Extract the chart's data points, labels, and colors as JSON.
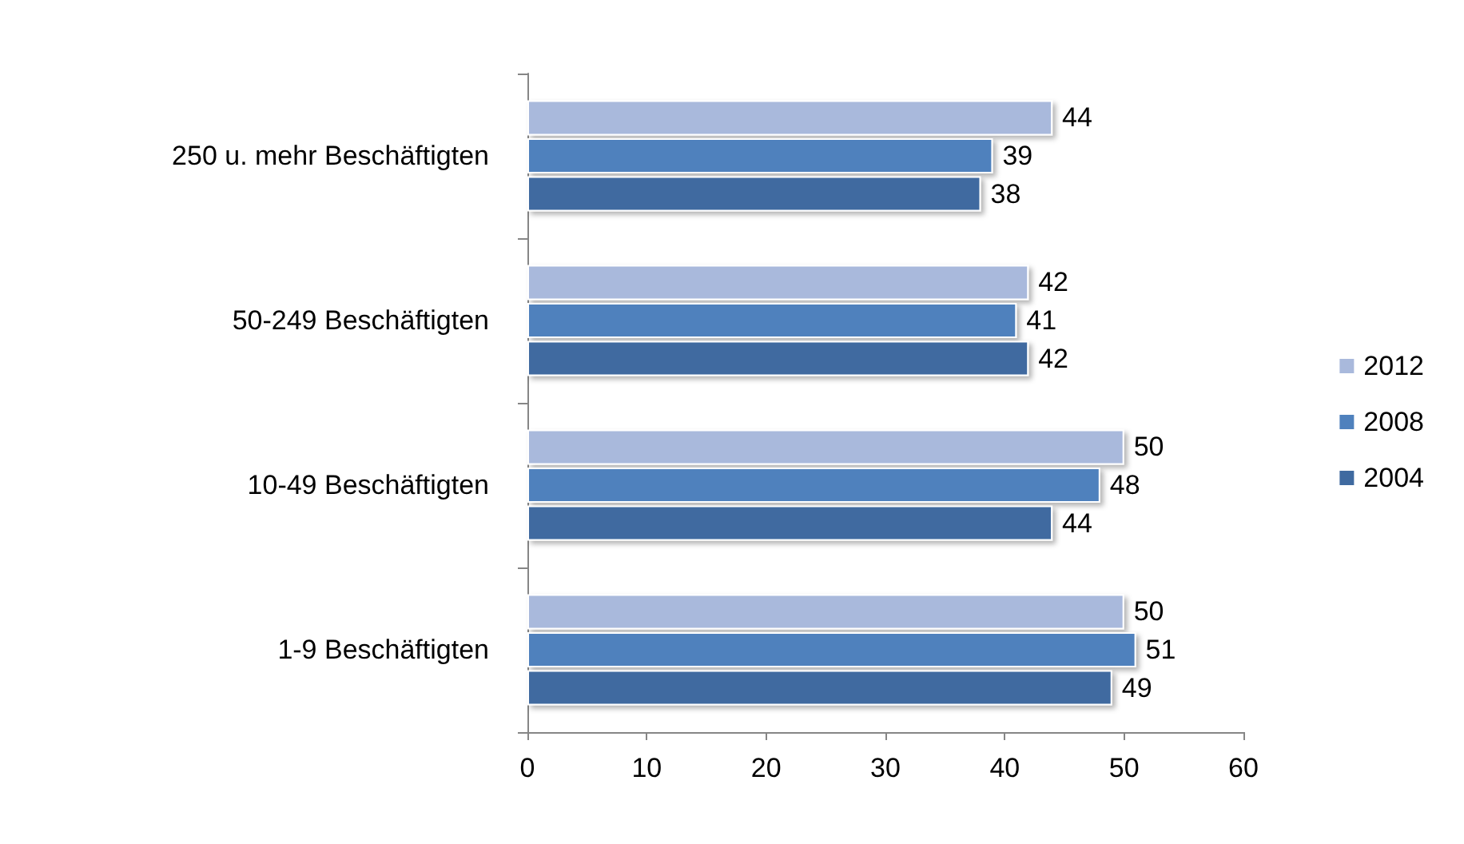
{
  "chart_data": {
    "type": "bar",
    "orientation": "horizontal",
    "categories": [
      "250 u. mehr Beschäftigten",
      "50-249 Beschäftigten",
      "10-49 Beschäftigten",
      "1-9 Beschäftigten"
    ],
    "series": [
      {
        "name": "2012",
        "color": "#a9b9dc",
        "values": [
          44,
          42,
          50,
          50
        ]
      },
      {
        "name": "2008",
        "color": "#4f81bd",
        "values": [
          39,
          41,
          48,
          51
        ]
      },
      {
        "name": "2004",
        "color": "#3f6aa0",
        "values": [
          38,
          42,
          44,
          49
        ]
      }
    ],
    "xlim": [
      0,
      60
    ],
    "xticks": [
      0,
      10,
      20,
      30,
      40,
      50,
      60
    ],
    "grid": false,
    "legend": "right",
    "data_labels": true
  }
}
